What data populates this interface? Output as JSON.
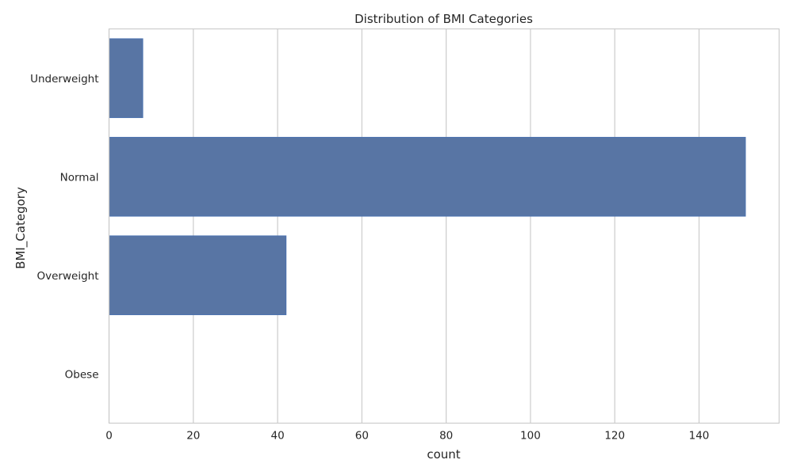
{
  "chart_data": {
    "type": "bar",
    "orientation": "horizontal",
    "title": "Distribution of BMI Categories",
    "xlabel": "count",
    "ylabel": "BMI_Category",
    "categories": [
      "Underweight",
      "Normal",
      "Overweight",
      "Obese"
    ],
    "values": [
      8,
      151,
      42,
      0
    ],
    "xlim": [
      0,
      159
    ],
    "xticks": [
      0,
      20,
      40,
      60,
      80,
      100,
      120,
      140
    ],
    "grid": true,
    "bar_color": "#5875a4",
    "bar_edge_color": "#4c72b0"
  }
}
